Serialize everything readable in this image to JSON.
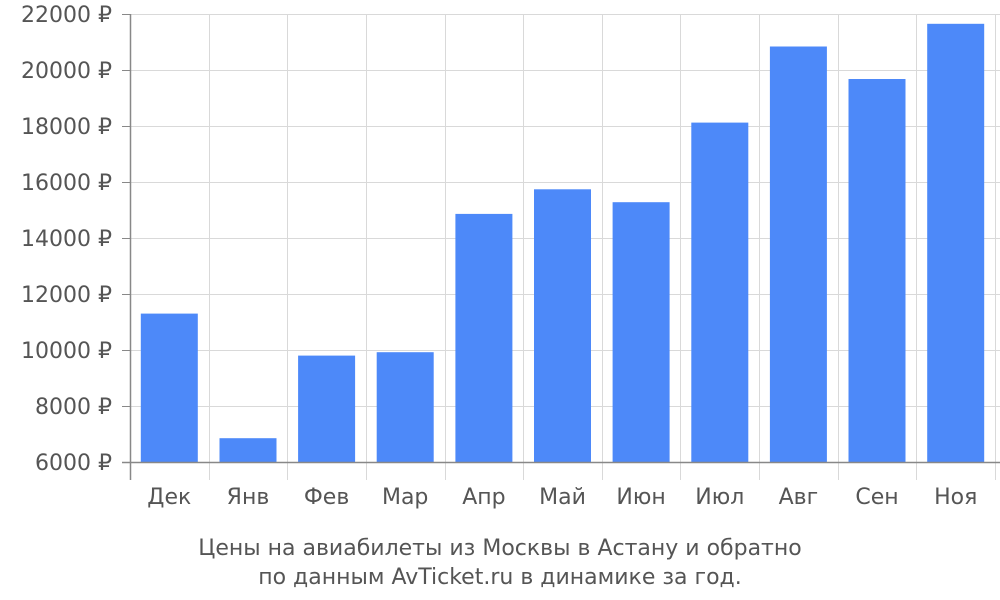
{
  "chart_data": {
    "type": "bar",
    "categories": [
      "Дек",
      "Янв",
      "Фев",
      "Мар",
      "Апр",
      "Май",
      "Июн",
      "Июл",
      "Авг",
      "Сен",
      "Ноя"
    ],
    "values": [
      11300,
      6850,
      9800,
      9920,
      14860,
      15740,
      15280,
      18120,
      20840,
      19680,
      21650
    ],
    "ylim": [
      6000,
      22000
    ],
    "yticks": [
      6000,
      8000,
      10000,
      12000,
      14000,
      16000,
      18000,
      20000,
      22000
    ],
    "ytick_labels": [
      "6000 ₽",
      "8000 ₽",
      "10000 ₽",
      "12000 ₽",
      "14000 ₽",
      "16000 ₽",
      "18000 ₽",
      "20000 ₽",
      "22000 ₽"
    ],
    "grid": true,
    "colors": {
      "bar": "#4d89f9",
      "grid": "#d9d9d9",
      "axis": "#888888",
      "text": "#555555"
    }
  },
  "caption": {
    "line1": "Цены на авиабилеты из Москвы в Астану и обратно",
    "line2": "по данным AvTicket.ru в динамике за год."
  }
}
